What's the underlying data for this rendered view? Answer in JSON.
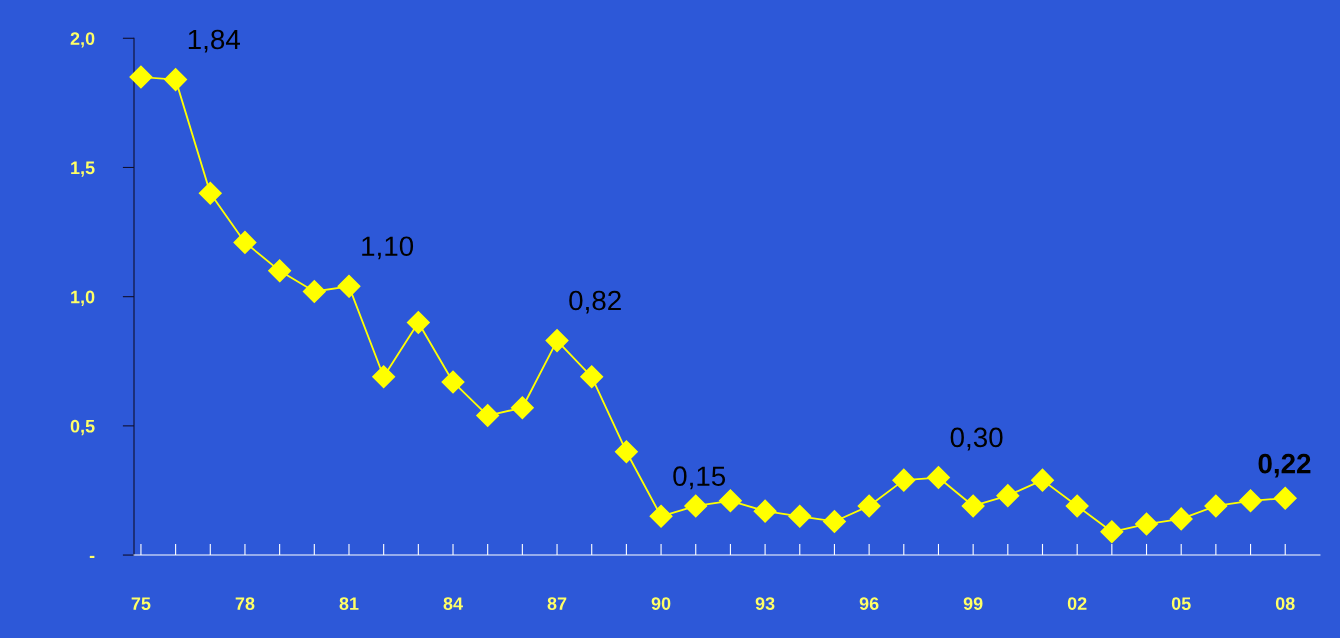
{
  "chart_data": {
    "type": "line",
    "marker": "diamond",
    "line_style": "solid",
    "grid": false,
    "legend": false,
    "x": [
      1975,
      1976,
      1977,
      1978,
      1979,
      1980,
      1981,
      1982,
      1983,
      1984,
      1985,
      1986,
      1987,
      1988,
      1989,
      1990,
      1991,
      1992,
      1993,
      1994,
      1995,
      1996,
      1997,
      1998,
      1999,
      2000,
      2001,
      2002,
      2003,
      2004,
      2005,
      2006,
      2007,
      2008
    ],
    "series": [
      {
        "color": "#ffff00",
        "values": [
          1.85,
          1.84,
          1.4,
          1.21,
          1.1,
          1.02,
          1.04,
          0.69,
          0.9,
          0.67,
          0.54,
          0.57,
          0.83,
          0.69,
          0.4,
          0.15,
          0.19,
          0.21,
          0.17,
          0.15,
          0.13,
          0.19,
          0.29,
          0.3,
          0.19,
          0.23,
          0.29,
          0.19,
          0.09,
          0.12,
          0.14,
          0.19,
          0.21,
          0.22
        ]
      }
    ],
    "xlim": [
      1974.8,
      2009
    ],
    "xticks": [
      {
        "value": 1975,
        "label": "75"
      },
      {
        "value": 1976,
        "label": null
      },
      {
        "value": 1977,
        "label": null
      },
      {
        "value": 1978,
        "label": "78"
      },
      {
        "value": 1979,
        "label": null
      },
      {
        "value": 1980,
        "label": null
      },
      {
        "value": 1981,
        "label": "81"
      },
      {
        "value": 1982,
        "label": null
      },
      {
        "value": 1983,
        "label": null
      },
      {
        "value": 1984,
        "label": "84"
      },
      {
        "value": 1985,
        "label": null
      },
      {
        "value": 1986,
        "label": null
      },
      {
        "value": 1987,
        "label": "87"
      },
      {
        "value": 1988,
        "label": null
      },
      {
        "value": 1989,
        "label": null
      },
      {
        "value": 1990,
        "label": "90"
      },
      {
        "value": 1991,
        "label": null
      },
      {
        "value": 1992,
        "label": null
      },
      {
        "value": 1993,
        "label": "93"
      },
      {
        "value": 1994,
        "label": null
      },
      {
        "value": 1995,
        "label": null
      },
      {
        "value": 1996,
        "label": "96"
      },
      {
        "value": 1997,
        "label": null
      },
      {
        "value": 1998,
        "label": null
      },
      {
        "value": 1999,
        "label": "99"
      },
      {
        "value": 2000,
        "label": null
      },
      {
        "value": 2001,
        "label": null
      },
      {
        "value": 2002,
        "label": "02"
      },
      {
        "value": 2003,
        "label": null
      },
      {
        "value": 2004,
        "label": null
      },
      {
        "value": 2005,
        "label": "05"
      },
      {
        "value": 2006,
        "label": null
      },
      {
        "value": 2007,
        "label": null
      },
      {
        "value": 2008,
        "label": "08"
      }
    ],
    "ylim": [
      0,
      2.0
    ],
    "yticks": [
      {
        "value": 0,
        "label": "-"
      },
      {
        "value": 0.5,
        "label": "0,5"
      },
      {
        "value": 1.0,
        "label": "1,0"
      },
      {
        "value": 1.5,
        "label": "1,5"
      },
      {
        "value": 2.0,
        "label": "2,0"
      }
    ],
    "annotations": [
      {
        "text": "1,84",
        "x": 1976,
        "y": 1.84
      },
      {
        "text": "1,10",
        "x": 1981,
        "y": 1.04
      },
      {
        "text": "0,82",
        "x": 1987,
        "y": 0.83
      },
      {
        "text": "0,15",
        "x": 1990,
        "y": 0.15
      },
      {
        "text": "0,30",
        "x": 1998,
        "y": 0.3
      },
      {
        "text": "0,22",
        "x": 2008,
        "y": 0.22
      }
    ]
  }
}
